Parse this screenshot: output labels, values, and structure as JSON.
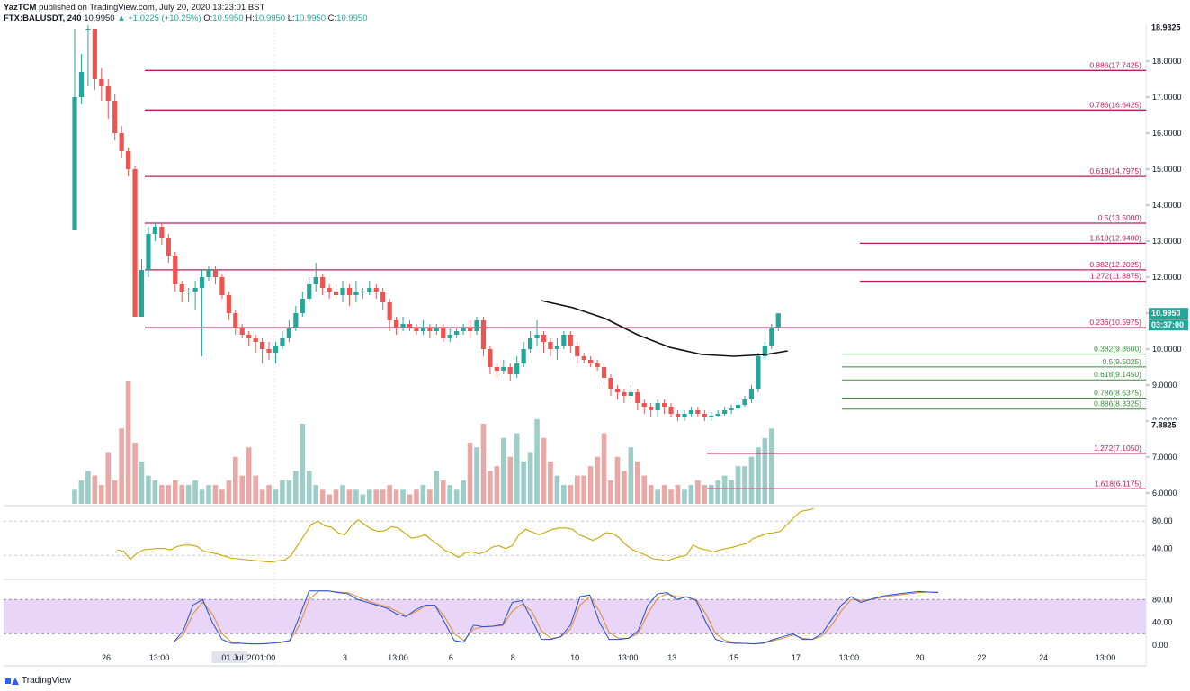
{
  "header": {
    "publisher": "YazTCM",
    "published_text": "published on TradingView.com, July 20, 2020 13:23:01 BST",
    "symbol": "FTX:BALUSDT, 240",
    "last": "10.9950",
    "change": "+1.0225 (+10.25%)",
    "o_label": "O:",
    "o_val": "10.9950",
    "h_label": "H:",
    "h_val": "10.9950",
    "l_label": "L:",
    "l_val": "10.9950",
    "c_label": "C:",
    "c_val": "10.9950"
  },
  "footer": {
    "brand": "TradingView"
  },
  "colors": {
    "up": "#26a69a",
    "down": "#ef5350",
    "resistance": "#c2185b",
    "support": "#388e3c",
    "rsi": "#c9a800",
    "stoch_k": "#1e4fd8",
    "stoch_d": "#e08a2c",
    "stoch_band": "#e9d5f7"
  },
  "chart_data": [
    {
      "type": "candlestick",
      "price_axis_ticks": [
        "18.0000",
        "17.0000",
        "16.0000",
        "15.0000",
        "14.0000",
        "13.0000",
        "12.0000",
        "11.0000",
        "10.0000",
        "9.0000",
        "8.0000",
        "7.0000",
        "6.0000"
      ],
      "price_axis_tick_values": [
        18,
        17,
        16,
        15,
        14,
        13,
        12,
        11,
        10,
        9,
        8,
        7,
        6
      ],
      "ylim": [
        5.7,
        19.0
      ],
      "time_labels": [
        "26",
        "13:00",
        "29",
        "01 Jul '20",
        "01:00",
        "3",
        "13:00",
        "6",
        "8",
        "10",
        "13:00",
        "13",
        "15",
        "17",
        "13:00",
        "20",
        "22",
        "24",
        "13:00"
      ],
      "time_label_slots": [
        8,
        14,
        21,
        23,
        26,
        35,
        41,
        47,
        54,
        61,
        67,
        72,
        79,
        86,
        92,
        100,
        107,
        114,
        121
      ],
      "total_slots": 123,
      "axis_badges": [
        {
          "label": "18.9325",
          "value": 18.9325,
          "style": "plain"
        },
        {
          "label": "7.8825",
          "value": 7.8825,
          "style": "plain"
        },
        {
          "label": "10.9950",
          "value": 10.995,
          "style": "current"
        },
        {
          "label": "03:37:00",
          "value": 10.62,
          "style": "current"
        }
      ],
      "candles": [
        [
          13.3,
          17.0,
          18.9,
          13.3
        ],
        [
          17.0,
          17.7,
          18.2,
          16.8
        ],
        [
          18.9,
          18.9,
          19.0,
          17.3
        ],
        [
          18.9,
          17.5,
          18.9,
          17.2
        ],
        [
          17.5,
          17.3,
          17.8,
          16.9
        ],
        [
          17.3,
          16.9,
          17.5,
          16.4
        ],
        [
          16.9,
          16.0,
          17.1,
          15.8
        ],
        [
          16.0,
          15.5,
          16.2,
          15.3
        ],
        [
          15.5,
          15.0,
          15.6,
          14.8
        ],
        [
          15.0,
          10.9,
          15.1,
          10.9
        ],
        [
          10.9,
          12.2,
          12.5,
          10.9
        ],
        [
          12.2,
          13.2,
          13.4,
          12.0
        ],
        [
          13.2,
          13.4,
          13.5,
          13.0
        ],
        [
          13.4,
          13.1,
          13.5,
          12.9
        ],
        [
          13.1,
          12.6,
          13.2,
          12.4
        ],
        [
          12.6,
          11.8,
          12.7,
          11.6
        ],
        [
          11.8,
          11.6,
          11.9,
          11.3
        ],
        [
          11.6,
          11.6,
          11.7,
          11.3
        ],
        [
          11.6,
          11.7,
          11.9,
          11.1
        ],
        [
          11.7,
          12.0,
          12.2,
          9.8
        ],
        [
          12.0,
          12.2,
          12.3,
          11.9
        ],
        [
          12.2,
          12.0,
          12.3,
          11.8
        ],
        [
          12.0,
          11.5,
          12.1,
          11.4
        ],
        [
          11.5,
          11.0,
          11.6,
          10.8
        ],
        [
          11.0,
          10.6,
          11.1,
          10.4
        ],
        [
          10.6,
          10.4,
          10.7,
          10.3
        ],
        [
          10.4,
          10.3,
          10.5,
          10.1
        ],
        [
          10.3,
          10.2,
          10.4,
          9.9
        ],
        [
          10.2,
          10.0,
          10.3,
          9.6
        ],
        [
          10.0,
          9.9,
          10.2,
          9.7
        ],
        [
          9.9,
          10.1,
          10.2,
          9.6
        ],
        [
          10.1,
          10.3,
          10.5,
          10.0
        ],
        [
          10.3,
          10.6,
          10.8,
          10.2
        ],
        [
          10.6,
          11.0,
          11.2,
          10.5
        ],
        [
          11.0,
          11.4,
          11.6,
          10.9
        ],
        [
          11.4,
          11.8,
          12.0,
          11.3
        ],
        [
          11.8,
          12.0,
          12.4,
          11.6
        ],
        [
          12.0,
          11.7,
          12.1,
          11.5
        ],
        [
          11.7,
          11.6,
          11.8,
          11.4
        ],
        [
          11.6,
          11.5,
          11.8,
          11.4
        ],
        [
          11.5,
          11.7,
          11.9,
          11.3
        ],
        [
          11.7,
          11.5,
          11.8,
          11.2
        ],
        [
          11.5,
          11.6,
          11.9,
          11.3
        ],
        [
          11.6,
          11.6,
          11.7,
          11.4
        ],
        [
          11.6,
          11.7,
          11.9,
          11.5
        ],
        [
          11.7,
          11.6,
          11.8,
          11.4
        ],
        [
          11.6,
          11.3,
          11.7,
          11.1
        ],
        [
          11.3,
          10.8,
          11.4,
          10.5
        ],
        [
          10.8,
          10.6,
          10.9,
          10.4
        ],
        [
          10.6,
          10.7,
          10.9,
          10.5
        ],
        [
          10.7,
          10.6,
          10.8,
          10.5
        ],
        [
          10.6,
          10.5,
          10.7,
          10.4
        ],
        [
          10.5,
          10.6,
          10.8,
          10.4
        ],
        [
          10.6,
          10.5,
          10.7,
          10.3
        ],
        [
          10.5,
          10.6,
          10.7,
          10.4
        ],
        [
          10.6,
          10.3,
          10.7,
          10.2
        ],
        [
          10.3,
          10.4,
          10.6,
          10.2
        ],
        [
          10.4,
          10.5,
          10.6,
          10.3
        ],
        [
          10.5,
          10.6,
          10.7,
          10.4
        ],
        [
          10.6,
          10.5,
          10.8,
          10.3
        ],
        [
          10.5,
          10.8,
          10.9,
          10.4
        ],
        [
          10.8,
          10.0,
          10.9,
          9.8
        ],
        [
          10.0,
          9.5,
          10.1,
          9.3
        ],
        [
          9.5,
          9.4,
          9.6,
          9.2
        ],
        [
          9.4,
          9.5,
          9.7,
          9.3
        ],
        [
          9.5,
          9.3,
          9.6,
          9.1
        ],
        [
          9.3,
          9.6,
          9.8,
          9.2
        ],
        [
          9.6,
          10.0,
          10.2,
          9.5
        ],
        [
          10.0,
          10.3,
          10.5,
          9.9
        ],
        [
          10.3,
          10.4,
          10.8,
          10.1
        ],
        [
          10.4,
          10.2,
          10.5,
          9.9
        ],
        [
          10.2,
          10.0,
          10.3,
          9.8
        ],
        [
          10.0,
          10.1,
          10.3,
          9.7
        ],
        [
          10.1,
          10.4,
          10.5,
          10.0
        ],
        [
          10.4,
          10.1,
          10.5,
          9.9
        ],
        [
          10.1,
          9.8,
          10.2,
          9.6
        ],
        [
          9.8,
          9.7,
          9.9,
          9.6
        ],
        [
          9.7,
          9.6,
          9.8,
          9.5
        ],
        [
          9.6,
          9.5,
          9.7,
          9.4
        ],
        [
          9.5,
          9.2,
          9.6,
          9.0
        ],
        [
          9.2,
          8.9,
          9.3,
          8.7
        ],
        [
          8.9,
          8.8,
          9.0,
          8.6
        ],
        [
          8.8,
          8.7,
          8.9,
          8.5
        ],
        [
          8.7,
          8.8,
          9.0,
          8.6
        ],
        [
          8.8,
          8.5,
          8.9,
          8.3
        ],
        [
          8.5,
          8.4,
          8.6,
          8.2
        ],
        [
          8.4,
          8.3,
          8.5,
          8.1
        ],
        [
          8.3,
          8.5,
          8.6,
          8.1
        ],
        [
          8.5,
          8.4,
          8.6,
          8.2
        ],
        [
          8.4,
          8.2,
          8.5,
          8.1
        ],
        [
          8.2,
          8.1,
          8.3,
          8.0
        ],
        [
          8.1,
          8.2,
          8.3,
          8.0
        ],
        [
          8.2,
          8.3,
          8.4,
          8.1
        ],
        [
          8.3,
          8.2,
          8.4,
          8.1
        ],
        [
          8.2,
          8.1,
          8.3,
          8.0
        ],
        [
          8.1,
          8.15,
          8.25,
          8.0
        ],
        [
          8.15,
          8.2,
          8.3,
          8.1
        ],
        [
          8.2,
          8.3,
          8.4,
          8.15
        ],
        [
          8.3,
          8.35,
          8.45,
          8.2
        ],
        [
          8.35,
          8.45,
          8.55,
          8.3
        ],
        [
          8.45,
          8.6,
          8.7,
          8.4
        ],
        [
          8.6,
          8.9,
          9.0,
          8.5
        ],
        [
          8.9,
          9.8,
          9.9,
          8.8
        ],
        [
          9.8,
          10.1,
          10.2,
          9.7
        ],
        [
          10.1,
          10.6,
          10.7,
          10.0
        ],
        [
          10.6,
          10.995,
          11.0,
          10.5
        ]
      ],
      "candle_start_slot": 0,
      "volume": [
        3,
        5,
        7,
        6,
        4,
        11,
        5,
        16,
        26,
        13,
        9,
        6,
        5,
        4,
        4,
        5,
        4,
        4,
        5,
        3,
        4,
        4,
        3,
        5,
        10,
        6,
        12,
        6,
        3,
        4,
        3,
        5,
        5,
        7,
        17,
        7,
        4,
        3,
        2,
        3,
        4,
        3,
        3,
        2,
        3,
        3,
        3,
        4,
        3,
        3,
        2,
        3,
        4,
        3,
        7,
        5,
        4,
        3,
        5,
        13,
        12,
        17,
        7,
        8,
        14,
        10,
        15,
        9,
        11,
        18,
        14,
        9,
        6,
        4,
        4,
        6,
        6,
        8,
        10,
        15,
        5,
        10,
        7,
        12,
        9,
        6,
        4,
        3,
        4,
        3,
        4,
        3,
        4,
        5,
        4,
        4,
        5,
        6,
        5,
        8,
        8,
        10,
        12,
        14,
        16
      ]
    },
    {
      "type": "line",
      "name": "RSI",
      "axis_ticks": [
        "80.00",
        "40.00"
      ],
      "axis_tick_values": [
        80,
        40
      ],
      "ylim": [
        0,
        100
      ],
      "values": [
        38,
        36,
        24,
        33,
        38,
        39,
        40,
        40,
        38,
        43,
        45,
        45,
        43,
        36,
        34,
        32,
        29,
        26,
        25,
        24,
        23,
        22,
        21,
        20,
        22,
        23,
        30,
        45,
        60,
        75,
        80,
        73,
        71,
        63,
        60,
        73,
        82,
        75,
        68,
        65,
        66,
        72,
        70,
        62,
        55,
        57,
        60,
        52,
        45,
        37,
        33,
        27,
        34,
        35,
        32,
        35,
        42,
        44,
        40,
        44,
        60,
        68,
        64,
        60,
        64,
        68,
        70,
        70,
        68,
        60,
        56,
        52,
        56,
        63,
        62,
        55,
        45,
        38,
        34,
        30,
        25,
        24,
        22,
        25,
        28,
        30,
        45,
        40,
        38,
        35,
        38,
        40,
        42,
        45,
        47,
        55,
        58,
        62,
        63,
        65,
        75,
        85,
        94,
        96,
        98
      ]
    },
    {
      "type": "line",
      "name": "Stochastic RSI",
      "axis_ticks": [
        "80.00",
        "40.00",
        "0.00"
      ],
      "axis_tick_values": [
        80,
        40,
        0
      ],
      "ylim": [
        -8,
        112
      ],
      "k_values": [
        5,
        25,
        70,
        80,
        40,
        10,
        3,
        3,
        2,
        2,
        3,
        5,
        8,
        50,
        95,
        95,
        95,
        92,
        90,
        80,
        75,
        70,
        65,
        55,
        50,
        62,
        70,
        70,
        40,
        8,
        5,
        35,
        32,
        33,
        36,
        75,
        78,
        45,
        10,
        10,
        15,
        35,
        85,
        88,
        40,
        10,
        10,
        12,
        25,
        70,
        90,
        92,
        80,
        85,
        78,
        40,
        10,
        5,
        3,
        3,
        2,
        4,
        10,
        15,
        20,
        10,
        10,
        20,
        45,
        70,
        85,
        75,
        80,
        85,
        88,
        90,
        92,
        94,
        93,
        92
      ],
      "d_values": [
        5,
        18,
        55,
        75,
        55,
        20,
        5,
        3,
        2,
        2,
        3,
        4,
        7,
        35,
        80,
        95,
        95,
        93,
        92,
        85,
        78,
        72,
        68,
        60,
        52,
        58,
        68,
        70,
        50,
        20,
        8,
        28,
        32,
        33,
        34,
        60,
        72,
        60,
        25,
        12,
        14,
        28,
        70,
        85,
        60,
        22,
        12,
        12,
        20,
        55,
        82,
        90,
        85,
        84,
        80,
        55,
        20,
        8,
        4,
        3,
        2,
        3,
        8,
        12,
        18,
        12,
        10,
        16,
        35,
        60,
        80,
        78,
        80,
        83,
        86,
        88,
        90,
        92,
        93,
        93
      ],
      "band": [
        20,
        80
      ]
    }
  ],
  "levels": [
    {
      "label": "0.886(17.7425)",
      "value": 17.7425,
      "kind": "resistance",
      "x_from": 161
    },
    {
      "label": "0.786(16.6425)",
      "value": 16.6425,
      "kind": "resistance",
      "x_from": 161
    },
    {
      "label": "0.618(14.7975)",
      "value": 14.7975,
      "kind": "resistance",
      "x_from": 161
    },
    {
      "label": "0.5(13.5000)",
      "value": 13.5,
      "kind": "resistance",
      "x_from": 161
    },
    {
      "label": "1.618(12.9400)",
      "value": 12.94,
      "kind": "resistance",
      "x_from": 956
    },
    {
      "label": "0.382(12.2025)",
      "value": 12.2025,
      "kind": "resistance",
      "x_from": 161
    },
    {
      "label": "1.272(11.8875)",
      "value": 11.8875,
      "kind": "resistance",
      "x_from": 956
    },
    {
      "label": "0.236(10.5975)",
      "value": 10.5975,
      "kind": "resistance",
      "x_from": 161
    },
    {
      "label": "0.382(9.8600)",
      "value": 9.86,
      "kind": "support",
      "x_from": 936
    },
    {
      "label": "0.5(9.5025)",
      "value": 9.5025,
      "kind": "support",
      "x_from": 936
    },
    {
      "label": "0.618(9.1450)",
      "value": 9.145,
      "kind": "support",
      "x_from": 936
    },
    {
      "label": "0.786(8.6375)",
      "value": 8.6375,
      "kind": "support",
      "x_from": 936
    },
    {
      "label": "0.886(8.3325)",
      "value": 8.3325,
      "kind": "support",
      "x_from": 936
    },
    {
      "label": "1.272(7.1050)",
      "value": 7.105,
      "kind": "resistance",
      "x_from": 786
    },
    {
      "label": "1.618(6.1175)",
      "value": 6.1175,
      "kind": "resistance",
      "x_from": 786
    }
  ],
  "moving_average": [
    [
      11.3,
      0
    ],
    [
      11.1,
      0
    ],
    [
      10.8,
      0
    ],
    [
      10.5,
      0
    ],
    [
      10.2,
      0
    ],
    [
      10.0,
      0
    ],
    [
      9.85,
      0
    ],
    [
      9.8,
      0
    ]
  ]
}
